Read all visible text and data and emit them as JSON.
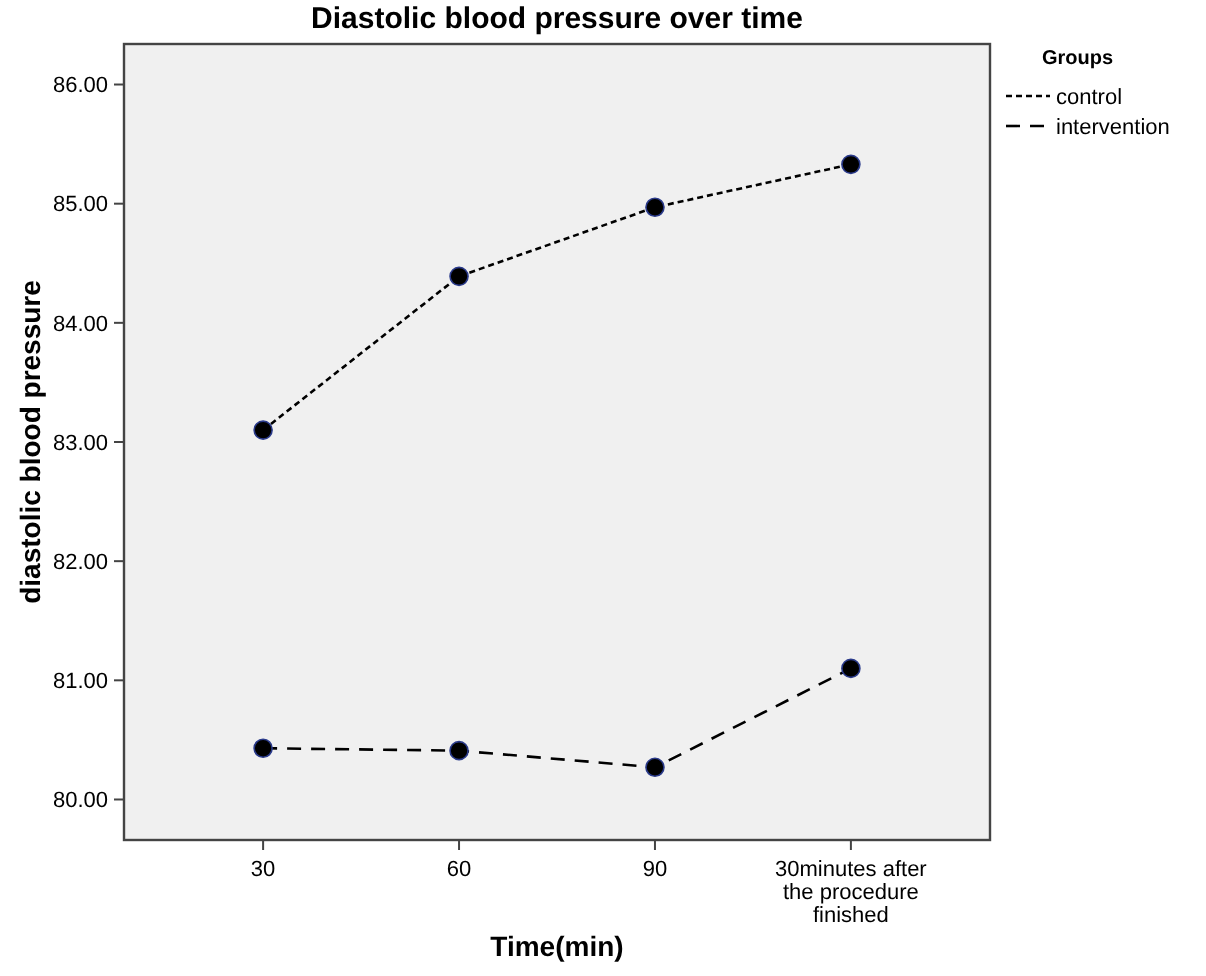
{
  "chart_data": {
    "type": "line",
    "title": "Diastolic blood pressure over time",
    "xlabel": "Time(min)",
    "ylabel": "diastolic blood pressure",
    "legend_title": "Groups",
    "categories": [
      "30",
      "60",
      "90",
      "30minutes after the procedure finished"
    ],
    "series": [
      {
        "name": "control",
        "color": "#000000",
        "line_style": "dotted",
        "values": [
          83.1,
          84.39,
          84.97,
          85.33
        ]
      },
      {
        "name": "intervention",
        "color": "#000000",
        "line_style": "dashed",
        "values": [
          80.43,
          80.41,
          80.27,
          81.1
        ]
      }
    ],
    "ylim": [
      79.66,
      86.34
    ],
    "yticks": [
      {
        "value": 80,
        "label": "80.00"
      },
      {
        "value": 81,
        "label": "81.00"
      },
      {
        "value": 82,
        "label": "82.00"
      },
      {
        "value": 83,
        "label": "83.00"
      },
      {
        "value": 84,
        "label": "84.00"
      },
      {
        "value": 85,
        "label": "85.00"
      },
      {
        "value": 86,
        "label": "86.00"
      }
    ],
    "marker": "circle",
    "legend": "top right",
    "grid": false
  }
}
